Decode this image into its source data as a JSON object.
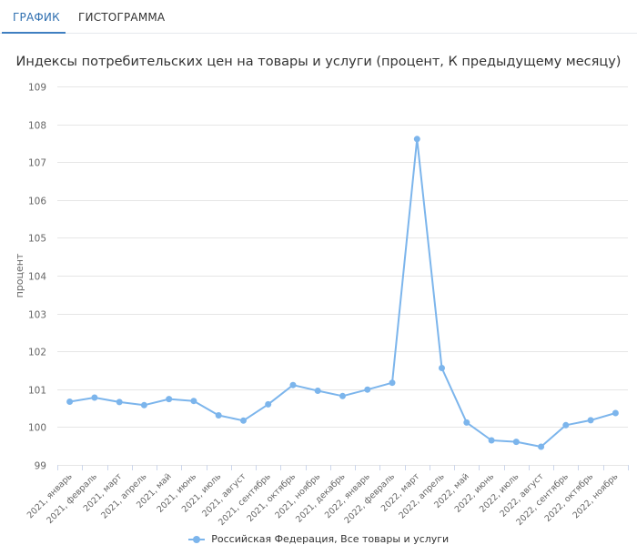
{
  "tabs": [
    {
      "label": "ГРАФИК",
      "active": true
    },
    {
      "label": "ГИСТОГРАММА",
      "active": false
    }
  ],
  "colors": {
    "accent": "#3f7fc1",
    "series": "#7cb5ec",
    "grid": "#e6e6e6",
    "axis_text": "#666666"
  },
  "chart_data": {
    "type": "line",
    "title": "Индексы потребительских цен на товары и услуги (процент, К предыдущему месяцу)",
    "xlabel": "",
    "ylabel": "процент",
    "ylim": [
      99,
      109
    ],
    "yticks": [
      "109",
      "108",
      "107",
      "106",
      "105",
      "104",
      "103",
      "102",
      "101",
      "100",
      "99"
    ],
    "grid": true,
    "legend_position": "bottom-center",
    "categories": [
      "2021, январь",
      "2021, февраль",
      "2021, март",
      "2021, апрель",
      "2021, май",
      "2021, июнь",
      "2021, июль",
      "2021, август",
      "2021, сентябрь",
      "2021, октябрь",
      "2021, ноябрь",
      "2021, декабрь",
      "2022, январь",
      "2022, февраль",
      "2022, март",
      "2022, апрель",
      "2022, май",
      "2022, июнь",
      "2022, июль",
      "2022, август",
      "2022, сентябрь",
      "2022, октябрь",
      "2022, ноябрь"
    ],
    "series": [
      {
        "name": "Российская Федерация, Все товары и услуги",
        "values": [
          100.67,
          100.78,
          100.66,
          100.58,
          100.74,
          100.69,
          100.31,
          100.17,
          100.6,
          101.11,
          100.96,
          100.82,
          100.99,
          101.17,
          107.61,
          101.56,
          100.12,
          99.65,
          99.61,
          99.48,
          100.05,
          100.18,
          100.37
        ]
      }
    ]
  }
}
